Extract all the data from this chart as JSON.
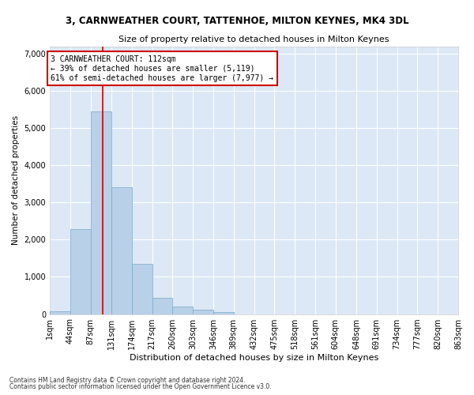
{
  "title1": "3, CARNWEATHER COURT, TATTENHOE, MILTON KEYNES, MK4 3DL",
  "title2": "Size of property relative to detached houses in Milton Keynes",
  "xlabel": "Distribution of detached houses by size in Milton Keynes",
  "ylabel": "Number of detached properties",
  "footnote1": "Contains HM Land Registry data © Crown copyright and database right 2024.",
  "footnote2": "Contains public sector information licensed under the Open Government Licence v3.0.",
  "bar_color": "#b8d0e8",
  "bar_edge_color": "#7aaac8",
  "bg_color": "#dce8f5",
  "grid_color": "#ffffff",
  "fig_bg_color": "#ffffff",
  "property_sqm": 112,
  "annotation_text": "3 CARNWEATHER COURT: 112sqm\n← 39% of detached houses are smaller (5,119)\n61% of semi-detached houses are larger (7,977) →",
  "annotation_box_color": "#ffffff",
  "annotation_box_edge": "#cc0000",
  "vline_color": "#cc0000",
  "bin_edges": [
    1,
    44,
    87,
    131,
    174,
    217,
    260,
    303,
    346,
    389,
    432,
    475,
    518,
    561,
    604,
    648,
    691,
    734,
    777,
    820,
    863
  ],
  "bar_heights": [
    70,
    2290,
    5450,
    3400,
    1350,
    430,
    200,
    110,
    50,
    0,
    0,
    0,
    0,
    0,
    0,
    0,
    0,
    0,
    0,
    0
  ],
  "ylim": [
    0,
    7200
  ],
  "yticks": [
    0,
    1000,
    2000,
    3000,
    4000,
    5000,
    6000,
    7000
  ]
}
